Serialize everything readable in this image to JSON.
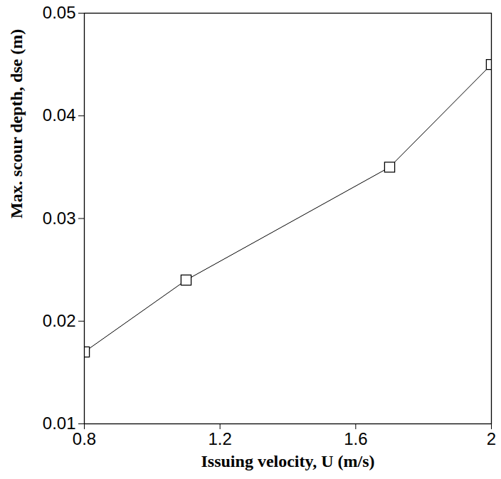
{
  "chart_data": {
    "type": "line",
    "x_label": "Issuing velocity, U (m/s)",
    "y_label": "Max. scour depth, dse (m)",
    "x": [
      0.8,
      1.1,
      1.7,
      2.0
    ],
    "values": [
      0.017,
      0.024,
      0.035,
      0.045
    ],
    "color": "#000000",
    "marker": "square",
    "line_style": "solid",
    "xlim": [
      0.8,
      2.0
    ],
    "xticks": [
      0.8,
      1.2,
      1.6,
      2
    ],
    "ylim": [
      0.01,
      0.05
    ],
    "yticks": [
      0.01,
      0.02,
      0.03,
      0.04,
      0.05
    ],
    "grid": false
  }
}
